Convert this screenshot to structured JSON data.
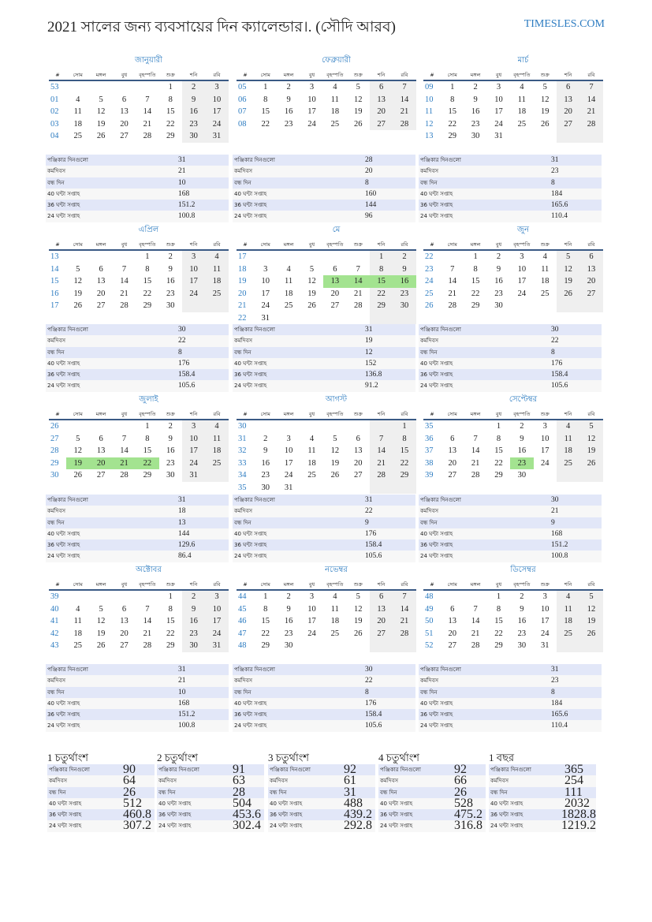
{
  "header": {
    "title": "2021 সালের জন্য ব্যবসায়ের দিন ক্যালেন্ডার।. (সৌদি আরব)",
    "brand": "TIMESLES.COM"
  },
  "weekday_headers": [
    "#",
    "সোম",
    "মঙ্গল",
    "বুধ",
    "বৃহস্পতি",
    "শুক্র",
    "শনি",
    "রবি"
  ],
  "stat_labels": [
    "পঞ্জিকার দিনগুলো",
    "কর্মদিবস",
    "বন্ধ দিন",
    "40 ঘন্টা সপ্তাহ",
    "36 ঘন্টা সপ্তাহ",
    "24 ঘন্টা সপ্তাহ"
  ],
  "colors": {
    "accent": "#2d7cc1",
    "weekend": "#efefef",
    "holiday": "#a3e390",
    "stripe": "#e2e7f8"
  },
  "months": [
    {
      "name": "জানুয়ারী",
      "weeks": [
        [
          "53",
          "",
          "",
          "",
          "",
          "1",
          "2",
          "3"
        ],
        [
          "01",
          "4",
          "5",
          "6",
          "7",
          "8",
          "9",
          "10"
        ],
        [
          "02",
          "11",
          "12",
          "13",
          "14",
          "15",
          "16",
          "17"
        ],
        [
          "03",
          "18",
          "19",
          "20",
          "21",
          "22",
          "23",
          "24"
        ],
        [
          "04",
          "25",
          "26",
          "27",
          "28",
          "29",
          "30",
          "31"
        ]
      ],
      "holidays": [],
      "stats": [
        "31",
        "21",
        "10",
        "168",
        "151.2",
        "100.8"
      ]
    },
    {
      "name": "ফেব্রুয়ারী",
      "weeks": [
        [
          "05",
          "1",
          "2",
          "3",
          "4",
          "5",
          "6",
          "7"
        ],
        [
          "06",
          "8",
          "9",
          "10",
          "11",
          "12",
          "13",
          "14"
        ],
        [
          "07",
          "15",
          "16",
          "17",
          "18",
          "19",
          "20",
          "21"
        ],
        [
          "08",
          "22",
          "23",
          "24",
          "25",
          "26",
          "27",
          "28"
        ]
      ],
      "holidays": [],
      "stats": [
        "28",
        "20",
        "8",
        "160",
        "144",
        "96"
      ]
    },
    {
      "name": "মার্চ",
      "weeks": [
        [
          "09",
          "1",
          "2",
          "3",
          "4",
          "5",
          "6",
          "7"
        ],
        [
          "10",
          "8",
          "9",
          "10",
          "11",
          "12",
          "13",
          "14"
        ],
        [
          "11",
          "15",
          "16",
          "17",
          "18",
          "19",
          "20",
          "21"
        ],
        [
          "12",
          "22",
          "23",
          "24",
          "25",
          "26",
          "27",
          "28"
        ],
        [
          "13",
          "29",
          "30",
          "31",
          "",
          "",
          "",
          ""
        ]
      ],
      "holidays": [],
      "stats": [
        "31",
        "23",
        "8",
        "184",
        "165.6",
        "110.4"
      ]
    },
    {
      "name": "এপ্রিল",
      "weeks": [
        [
          "13",
          "",
          "",
          "",
          "1",
          "2",
          "3",
          "4"
        ],
        [
          "14",
          "5",
          "6",
          "7",
          "8",
          "9",
          "10",
          "11"
        ],
        [
          "15",
          "12",
          "13",
          "14",
          "15",
          "16",
          "17",
          "18"
        ],
        [
          "16",
          "19",
          "20",
          "21",
          "22",
          "23",
          "24",
          "25"
        ],
        [
          "17",
          "26",
          "27",
          "28",
          "29",
          "30",
          "",
          ""
        ]
      ],
      "holidays": [],
      "stats": [
        "30",
        "22",
        "8",
        "176",
        "158.4",
        "105.6"
      ]
    },
    {
      "name": "মে",
      "weeks": [
        [
          "17",
          "",
          "",
          "",
          "",
          "",
          "1",
          "2"
        ],
        [
          "18",
          "3",
          "4",
          "5",
          "6",
          "7",
          "8",
          "9"
        ],
        [
          "19",
          "10",
          "11",
          "12",
          "13",
          "14",
          "15",
          "16"
        ],
        [
          "20",
          "17",
          "18",
          "19",
          "20",
          "21",
          "22",
          "23"
        ],
        [
          "21",
          "24",
          "25",
          "26",
          "27",
          "28",
          "29",
          "30"
        ],
        [
          "22",
          "31",
          "",
          "",
          "",
          "",
          "",
          ""
        ]
      ],
      "holidays": [
        "13",
        "14",
        "15",
        "16"
      ],
      "stats": [
        "31",
        "19",
        "12",
        "152",
        "136.8",
        "91.2"
      ]
    },
    {
      "name": "জুন",
      "weeks": [
        [
          "22",
          "",
          "1",
          "2",
          "3",
          "4",
          "5",
          "6"
        ],
        [
          "23",
          "7",
          "8",
          "9",
          "10",
          "11",
          "12",
          "13"
        ],
        [
          "24",
          "14",
          "15",
          "16",
          "17",
          "18",
          "19",
          "20"
        ],
        [
          "25",
          "21",
          "22",
          "23",
          "24",
          "25",
          "26",
          "27"
        ],
        [
          "26",
          "28",
          "29",
          "30",
          "",
          "",
          "",
          ""
        ]
      ],
      "holidays": [],
      "stats": [
        "30",
        "22",
        "8",
        "176",
        "158.4",
        "105.6"
      ]
    },
    {
      "name": "জুলাই",
      "weeks": [
        [
          "26",
          "",
          "",
          "",
          "1",
          "2",
          "3",
          "4"
        ],
        [
          "27",
          "5",
          "6",
          "7",
          "8",
          "9",
          "10",
          "11"
        ],
        [
          "28",
          "12",
          "13",
          "14",
          "15",
          "16",
          "17",
          "18"
        ],
        [
          "29",
          "19",
          "20",
          "21",
          "22",
          "23",
          "24",
          "25"
        ],
        [
          "30",
          "26",
          "27",
          "28",
          "29",
          "30",
          "31",
          ""
        ]
      ],
      "holidays": [
        "19",
        "20",
        "21",
        "22"
      ],
      "stats": [
        "31",
        "18",
        "13",
        "144",
        "129.6",
        "86.4"
      ]
    },
    {
      "name": "আগস্ট",
      "weeks": [
        [
          "30",
          "",
          "",
          "",
          "",
          "",
          "",
          "1"
        ],
        [
          "31",
          "2",
          "3",
          "4",
          "5",
          "6",
          "7",
          "8"
        ],
        [
          "32",
          "9",
          "10",
          "11",
          "12",
          "13",
          "14",
          "15"
        ],
        [
          "33",
          "16",
          "17",
          "18",
          "19",
          "20",
          "21",
          "22"
        ],
        [
          "34",
          "23",
          "24",
          "25",
          "26",
          "27",
          "28",
          "29"
        ],
        [
          "35",
          "30",
          "31",
          "",
          "",
          "",
          "",
          ""
        ]
      ],
      "holidays": [],
      "stats": [
        "31",
        "22",
        "9",
        "176",
        "158.4",
        "105.6"
      ]
    },
    {
      "name": "সেপ্টেম্বর",
      "weeks": [
        [
          "35",
          "",
          "",
          "1",
          "2",
          "3",
          "4",
          "5"
        ],
        [
          "36",
          "6",
          "7",
          "8",
          "9",
          "10",
          "11",
          "12"
        ],
        [
          "37",
          "13",
          "14",
          "15",
          "16",
          "17",
          "18",
          "19"
        ],
        [
          "38",
          "20",
          "21",
          "22",
          "23",
          "24",
          "25",
          "26"
        ],
        [
          "39",
          "27",
          "28",
          "29",
          "30",
          "",
          "",
          ""
        ]
      ],
      "holidays": [
        "23"
      ],
      "stats": [
        "30",
        "21",
        "9",
        "168",
        "151.2",
        "100.8"
      ]
    },
    {
      "name": "অক্টোবর",
      "weeks": [
        [
          "39",
          "",
          "",
          "",
          "",
          "1",
          "2",
          "3"
        ],
        [
          "40",
          "4",
          "5",
          "6",
          "7",
          "8",
          "9",
          "10"
        ],
        [
          "41",
          "11",
          "12",
          "13",
          "14",
          "15",
          "16",
          "17"
        ],
        [
          "42",
          "18",
          "19",
          "20",
          "21",
          "22",
          "23",
          "24"
        ],
        [
          "43",
          "25",
          "26",
          "27",
          "28",
          "29",
          "30",
          "31"
        ]
      ],
      "holidays": [],
      "stats": [
        "31",
        "21",
        "10",
        "168",
        "151.2",
        "100.8"
      ]
    },
    {
      "name": "নভেম্বর",
      "weeks": [
        [
          "44",
          "1",
          "2",
          "3",
          "4",
          "5",
          "6",
          "7"
        ],
        [
          "45",
          "8",
          "9",
          "10",
          "11",
          "12",
          "13",
          "14"
        ],
        [
          "46",
          "15",
          "16",
          "17",
          "18",
          "19",
          "20",
          "21"
        ],
        [
          "47",
          "22",
          "23",
          "24",
          "25",
          "26",
          "27",
          "28"
        ],
        [
          "48",
          "29",
          "30",
          "",
          "",
          "",
          "",
          ""
        ]
      ],
      "holidays": [],
      "stats": [
        "30",
        "22",
        "8",
        "176",
        "158.4",
        "105.6"
      ]
    },
    {
      "name": "ডিসেম্বর",
      "weeks": [
        [
          "48",
          "",
          "",
          "1",
          "2",
          "3",
          "4",
          "5"
        ],
        [
          "49",
          "6",
          "7",
          "8",
          "9",
          "10",
          "11",
          "12"
        ],
        [
          "50",
          "13",
          "14",
          "15",
          "16",
          "17",
          "18",
          "19"
        ],
        [
          "51",
          "20",
          "21",
          "22",
          "23",
          "24",
          "25",
          "26"
        ],
        [
          "52",
          "27",
          "28",
          "29",
          "30",
          "31",
          "",
          ""
        ]
      ],
      "holidays": [],
      "stats": [
        "31",
        "23",
        "8",
        "184",
        "165.6",
        "110.4"
      ]
    }
  ],
  "summaries": [
    {
      "title": "1 চতুর্থাংশ",
      "stats": [
        "90",
        "64",
        "26",
        "512",
        "460.8",
        "307.2"
      ]
    },
    {
      "title": "2 চতুর্থাংশ",
      "stats": [
        "91",
        "63",
        "28",
        "504",
        "453.6",
        "302.4"
      ]
    },
    {
      "title": "3 চতুর্থাংশ",
      "stats": [
        "92",
        "61",
        "31",
        "488",
        "439.2",
        "292.8"
      ]
    },
    {
      "title": "4 চতুর্থাংশ",
      "stats": [
        "92",
        "66",
        "26",
        "528",
        "475.2",
        "316.8"
      ]
    },
    {
      "title": "1 বছর",
      "stats": [
        "365",
        "254",
        "111",
        "2032",
        "1828.8",
        "1219.2"
      ]
    }
  ]
}
